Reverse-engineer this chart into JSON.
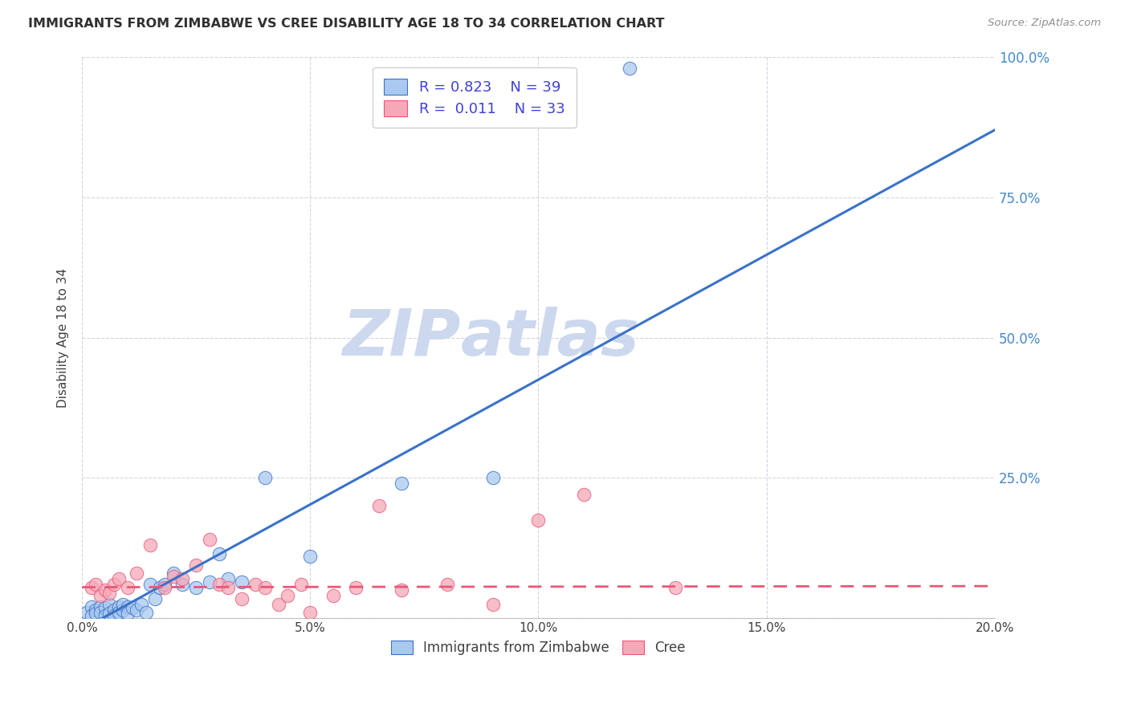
{
  "title": "IMMIGRANTS FROM ZIMBABWE VS CREE DISABILITY AGE 18 TO 34 CORRELATION CHART",
  "source": "Source: ZipAtlas.com",
  "ylabel": "Disability Age 18 to 34",
  "xlabel_legend_left": "Immigrants from Zimbabwe",
  "xlabel_legend_right": "Cree",
  "xlim": [
    0.0,
    0.2
  ],
  "ylim": [
    0.0,
    1.0
  ],
  "xticks": [
    0.0,
    0.05,
    0.1,
    0.15,
    0.2
  ],
  "xtick_labels": [
    "0.0%",
    "5.0%",
    "10.0%",
    "15.0%",
    "20.0%"
  ],
  "ytick_labels_right": [
    "",
    "25.0%",
    "50.0%",
    "75.0%",
    "100.0%"
  ],
  "yticks": [
    0.0,
    0.25,
    0.5,
    0.75,
    1.0
  ],
  "zim_R": 0.823,
  "zim_N": 39,
  "cree_R": 0.011,
  "cree_N": 33,
  "zim_color": "#aac9f0",
  "zim_line_color": "#3a72c8",
  "cree_color": "#f5a8b8",
  "cree_line_color": "#e85878",
  "legend_text_color": "#4040d8",
  "watermark_line1": "ZIP",
  "watermark_line2": "atlas",
  "watermark_color": "#ccd8ee",
  "background_color": "#ffffff",
  "grid_color": "#d0d0e0",
  "title_color": "#303030",
  "tick_label_color_right": "#4488cc",
  "zim_scatter_x": [
    0.001,
    0.002,
    0.002,
    0.003,
    0.003,
    0.004,
    0.004,
    0.005,
    0.005,
    0.006,
    0.006,
    0.007,
    0.007,
    0.008,
    0.008,
    0.009,
    0.009,
    0.01,
    0.01,
    0.011,
    0.012,
    0.013,
    0.014,
    0.015,
    0.016,
    0.017,
    0.018,
    0.02,
    0.022,
    0.025,
    0.028,
    0.03,
    0.032,
    0.035,
    0.04,
    0.05,
    0.07,
    0.09,
    0.12
  ],
  "zim_scatter_y": [
    0.01,
    0.02,
    0.005,
    0.015,
    0.008,
    0.02,
    0.01,
    0.018,
    0.005,
    0.025,
    0.008,
    0.015,
    0.005,
    0.02,
    0.01,
    0.015,
    0.025,
    0.02,
    0.008,
    0.018,
    0.015,
    0.025,
    0.01,
    0.06,
    0.035,
    0.055,
    0.06,
    0.08,
    0.06,
    0.055,
    0.065,
    0.115,
    0.07,
    0.065,
    0.25,
    0.11,
    0.24,
    0.25,
    0.98
  ],
  "cree_scatter_x": [
    0.002,
    0.003,
    0.004,
    0.005,
    0.006,
    0.007,
    0.008,
    0.01,
    0.012,
    0.015,
    0.018,
    0.02,
    0.022,
    0.025,
    0.028,
    0.03,
    0.032,
    0.035,
    0.038,
    0.04,
    0.043,
    0.045,
    0.048,
    0.05,
    0.055,
    0.06,
    0.065,
    0.07,
    0.08,
    0.09,
    0.1,
    0.11,
    0.13
  ],
  "cree_scatter_y": [
    0.055,
    0.06,
    0.04,
    0.05,
    0.045,
    0.06,
    0.07,
    0.055,
    0.08,
    0.13,
    0.055,
    0.075,
    0.07,
    0.095,
    0.14,
    0.06,
    0.055,
    0.035,
    0.06,
    0.055,
    0.025,
    0.04,
    0.06,
    0.01,
    0.04,
    0.055,
    0.2,
    0.05,
    0.06,
    0.025,
    0.175,
    0.22,
    0.055
  ],
  "zim_trendline_x": [
    0.0,
    0.2
  ],
  "zim_trendline_y": [
    -0.02,
    0.87
  ],
  "cree_trendline_x": [
    0.0,
    0.2
  ],
  "cree_trendline_y": [
    0.055,
    0.057
  ]
}
